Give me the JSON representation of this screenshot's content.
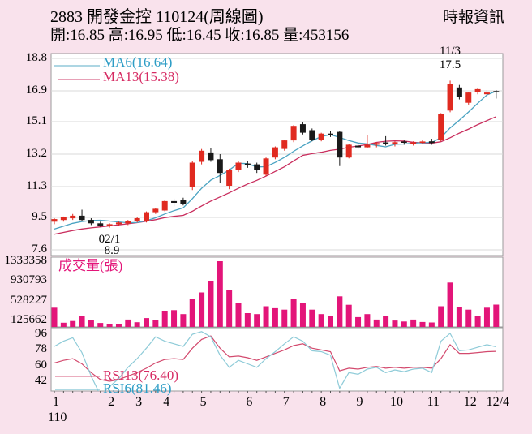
{
  "header": {
    "title": "2883  開發金控 110124(周線圖)",
    "provider": "時報資訊",
    "quote_line": "開:16.85 高:16.95 低:16.45 收:16.85 量:453156"
  },
  "colors": {
    "bg": "#f9e2ec",
    "pane": "#ffffff",
    "grid": "#d9d9d9",
    "border": "#9b9b9b",
    "text": "#000000",
    "candle_up": "#e02a20",
    "candle_down": "#1a1a1a",
    "ma6": "#4aa3c2",
    "ma13": "#c92d5d",
    "ma6_text": "#2d9dc6",
    "ma13_text": "#d62a62",
    "volume": "#e31579",
    "rsi6": "#8ecbd8",
    "rsi13": "#d34a6e"
  },
  "xaxis": {
    "year_label": "110",
    "month_ticks": [
      {
        "label": "1",
        "week": 1
      },
      {
        "label": "2",
        "week": 7
      },
      {
        "label": "3",
        "week": 10
      },
      {
        "label": "4",
        "week": 13
      },
      {
        "label": "5",
        "week": 17
      },
      {
        "label": "6",
        "week": 22
      },
      {
        "label": "7",
        "week": 26
      },
      {
        "label": "8",
        "week": 30
      },
      {
        "label": "9",
        "week": 34
      },
      {
        "label": "10",
        "week": 38
      },
      {
        "label": "11",
        "week": 42
      },
      {
        "label": "12",
        "week": 46
      },
      {
        "label": "12/4",
        "week": 49
      }
    ]
  },
  "chart_data": [
    {
      "type": "candlestick",
      "name": "weekly-price",
      "title": "2883 weekly candles, ROC year 110",
      "ylim": [
        7.6,
        18.8
      ],
      "y_ticks": [
        18.8,
        16.9,
        15.1,
        13.2,
        11.3,
        9.5,
        7.6
      ],
      "legend": [
        {
          "label": "MA6(16.64)",
          "color_key": "ma6"
        },
        {
          "label": "MA13(15.38)",
          "color_key": "ma13"
        }
      ],
      "annotations": [
        {
          "text": "02/1",
          "week": 7,
          "meaning": "low month marker"
        },
        {
          "text": "8.9",
          "week": 7,
          "meaning": "period low price"
        },
        {
          "text": "11/3",
          "week": 44,
          "meaning": "high week marker"
        },
        {
          "text": "17.5",
          "week": 44,
          "meaning": "period high price"
        }
      ],
      "ma_windows": [
        6,
        13
      ],
      "ma_pre_closes": [
        8.1,
        8.15,
        8.2,
        8.25,
        8.3,
        8.35,
        8.4,
        8.5,
        8.6,
        8.7,
        8.8,
        8.9
      ],
      "ohlc": [
        [
          9.25,
          9.45,
          9.1,
          9.4
        ],
        [
          9.35,
          9.55,
          9.25,
          9.5
        ],
        [
          9.45,
          9.7,
          9.35,
          9.6
        ],
        [
          9.6,
          9.95,
          9.3,
          9.35
        ],
        [
          9.35,
          9.45,
          9.05,
          9.15
        ],
        [
          9.15,
          9.25,
          8.95,
          9.0
        ],
        [
          9.0,
          9.15,
          8.9,
          9.1
        ],
        [
          9.1,
          9.25,
          9.0,
          9.2
        ],
        [
          9.15,
          9.35,
          9.05,
          9.3
        ],
        [
          9.3,
          9.5,
          9.2,
          9.45
        ],
        [
          9.3,
          9.85,
          9.2,
          9.8
        ],
        [
          9.8,
          10.05,
          9.7,
          10.0
        ],
        [
          9.9,
          10.5,
          9.85,
          10.45
        ],
        [
          10.45,
          10.6,
          10.15,
          10.35
        ],
        [
          10.5,
          10.65,
          10.2,
          10.3
        ],
        [
          11.3,
          12.8,
          11.1,
          12.7
        ],
        [
          12.75,
          13.5,
          12.6,
          13.4
        ],
        [
          13.3,
          13.55,
          12.75,
          12.85
        ],
        [
          12.9,
          13.2,
          11.5,
          12.1
        ],
        [
          11.35,
          12.35,
          11.15,
          12.25
        ],
        [
          12.25,
          12.8,
          12.15,
          12.7
        ],
        [
          12.65,
          12.8,
          12.4,
          12.55
        ],
        [
          12.6,
          12.7,
          12.1,
          12.25
        ],
        [
          12.0,
          13.0,
          11.9,
          12.95
        ],
        [
          13.0,
          13.65,
          12.9,
          13.6
        ],
        [
          13.5,
          14.05,
          13.4,
          14.0
        ],
        [
          14.0,
          14.9,
          13.9,
          14.85
        ],
        [
          14.95,
          15.05,
          14.35,
          14.45
        ],
        [
          14.6,
          14.7,
          13.95,
          14.05
        ],
        [
          14.05,
          14.45,
          13.95,
          14.4
        ],
        [
          14.4,
          14.55,
          14.2,
          14.3
        ],
        [
          14.5,
          14.55,
          12.5,
          13.0
        ],
        [
          13.0,
          13.8,
          12.95,
          13.75
        ],
        [
          13.7,
          13.85,
          13.5,
          13.6
        ],
        [
          13.6,
          14.3,
          13.55,
          13.75
        ],
        [
          13.75,
          13.9,
          13.6,
          13.85
        ],
        [
          13.85,
          14.25,
          13.7,
          13.8
        ],
        [
          13.8,
          13.95,
          13.65,
          13.9
        ],
        [
          13.9,
          14.0,
          13.75,
          13.85
        ],
        [
          13.85,
          13.95,
          13.7,
          13.9
        ],
        [
          13.9,
          14.05,
          13.8,
          13.95
        ],
        [
          13.95,
          14.1,
          13.75,
          13.85
        ],
        [
          14.05,
          15.6,
          13.95,
          15.55
        ],
        [
          15.75,
          17.5,
          15.65,
          17.3
        ],
        [
          17.1,
          17.25,
          16.4,
          16.55
        ],
        [
          16.2,
          16.85,
          16.1,
          16.8
        ],
        [
          16.85,
          17.05,
          16.7,
          17.0
        ],
        [
          16.7,
          16.95,
          16.5,
          16.8
        ],
        [
          16.85,
          16.95,
          16.45,
          16.85
        ]
      ]
    },
    {
      "type": "bar",
      "name": "volume",
      "legend": "成交量(張)",
      "y_ticks": [
        1333358,
        930793,
        528227,
        125662
      ],
      "ylim": [
        0,
        1413000
      ],
      "values": [
        390000,
        85000,
        120000,
        230000,
        140000,
        80000,
        65000,
        55000,
        150000,
        95000,
        180000,
        140000,
        330000,
        340000,
        260000,
        560000,
        700000,
        930000,
        1333358,
        750000,
        480000,
        280000,
        260000,
        420000,
        380000,
        350000,
        560000,
        480000,
        350000,
        260000,
        230000,
        620000,
        450000,
        200000,
        260000,
        150000,
        220000,
        130000,
        110000,
        150000,
        100000,
        90000,
        420000,
        900000,
        400000,
        350000,
        230000,
        390000,
        453156
      ]
    },
    {
      "type": "line",
      "name": "rsi",
      "y_ticks": [
        96,
        78,
        60,
        42
      ],
      "ylim": [
        30,
        104
      ],
      "series": [
        {
          "name": "RSI13",
          "label": "RSI13(76.40)",
          "color_key": "rsi13",
          "values": [
            63,
            66,
            68,
            62,
            52,
            44,
            42,
            44,
            48,
            52,
            57,
            63,
            67,
            68,
            67,
            80,
            90,
            94,
            80,
            70,
            71,
            69,
            66,
            70,
            74,
            78,
            83,
            85,
            80,
            78,
            76,
            54,
            57,
            56,
            58,
            59,
            57,
            58,
            57,
            58,
            58,
            57,
            68,
            84,
            74,
            74,
            75,
            76,
            76.4
          ]
        },
        {
          "name": "RSI6",
          "label": "RSI6(81.46)",
          "color_key": "rsi6",
          "values": [
            82,
            88,
            92,
            75,
            48,
            26,
            36,
            45,
            58,
            68,
            80,
            93,
            88,
            85,
            82,
            96,
            99,
            93,
            72,
            58,
            66,
            62,
            58,
            68,
            76,
            85,
            93,
            88,
            77,
            76,
            72,
            34,
            52,
            50,
            56,
            58,
            52,
            55,
            53,
            56,
            57,
            52,
            88,
            97,
            77,
            78,
            81,
            84,
            81.46
          ]
        }
      ]
    }
  ]
}
